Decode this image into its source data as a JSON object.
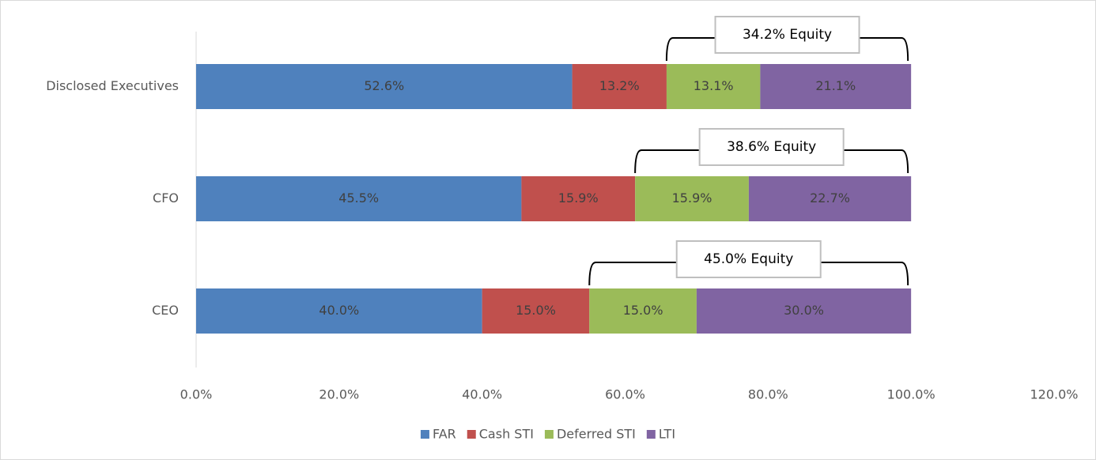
{
  "chart_data": {
    "type": "stacked-bar-horizontal",
    "categories": [
      "Disclosed Executives",
      "CFO",
      "CEO"
    ],
    "series": [
      {
        "name": "FAR",
        "color": "#4f81bd",
        "values": [
          52.6,
          45.5,
          40.0
        ],
        "value_labels": [
          "52.6%",
          "45.5%",
          "40.0%"
        ]
      },
      {
        "name": "Cash STI",
        "color": "#c0504d",
        "values": [
          13.2,
          15.9,
          15.0
        ],
        "value_labels": [
          "13.2%",
          "15.9%",
          "15.0%"
        ]
      },
      {
        "name": "Deferred STI",
        "color": "#9bbb59",
        "values": [
          13.1,
          15.9,
          15.0
        ],
        "value_labels": [
          "13.1%",
          "15.9%",
          "15.0%"
        ]
      },
      {
        "name": "LTI",
        "color": "#8064a2",
        "values": [
          21.1,
          22.7,
          30.0
        ],
        "value_labels": [
          "21.1%",
          "22.7%",
          "30.0%"
        ]
      }
    ],
    "annotations": [
      "34.2% Equity",
      "38.6% Equity",
      "45.0% Equity"
    ],
    "xlim": [
      0,
      120
    ],
    "xticks": [
      {
        "value": 0,
        "label": "0.0%"
      },
      {
        "value": 20,
        "label": "20.0%"
      },
      {
        "value": 40,
        "label": "40.0%"
      },
      {
        "value": 60,
        "label": "60.0%"
      },
      {
        "value": 80,
        "label": "80.0%"
      },
      {
        "value": 100,
        "label": "100.0%"
      },
      {
        "value": 120,
        "label": "120.0%"
      }
    ],
    "legend": "bottom"
  }
}
